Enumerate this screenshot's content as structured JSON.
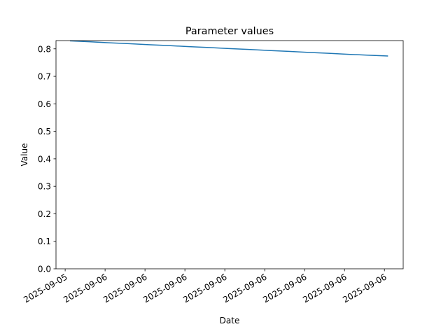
{
  "chart_data": {
    "type": "line",
    "title": "Parameter values",
    "x_label": "Date",
    "y_label": "Value",
    "x": [
      0.12,
      0.6,
      1.1,
      1.6,
      2.1,
      2.6,
      3.1,
      3.6,
      4.1,
      4.6,
      5.1,
      5.6,
      6.1,
      6.6,
      7.1,
      7.6,
      8.09
    ],
    "series": [
      {
        "name": "Value",
        "color": "#1f77b4",
        "values": [
          0.829,
          0.826,
          0.822,
          0.819,
          0.815,
          0.812,
          0.808,
          0.805,
          0.801,
          0.798,
          0.794,
          0.791,
          0.787,
          0.784,
          0.78,
          0.777,
          0.774
        ]
      }
    ],
    "xlim": [
      -0.23,
      8.47
    ],
    "xticks": [
      {
        "value": 0,
        "label": "2025-09-05"
      },
      {
        "value": 1,
        "label": "2025-09-06"
      },
      {
        "value": 2,
        "label": "2025-09-06"
      },
      {
        "value": 3,
        "label": "2025-09-06"
      },
      {
        "value": 4,
        "label": "2025-09-06"
      },
      {
        "value": 5,
        "label": "2025-09-06"
      },
      {
        "value": 6,
        "label": "2025-09-06"
      },
      {
        "value": 7,
        "label": "2025-09-06"
      },
      {
        "value": 8,
        "label": "2025-09-06"
      }
    ],
    "ylim": [
      0,
      0.83
    ],
    "yticks": [
      {
        "value": 0,
        "label": "0.0"
      },
      0.1,
      0.2,
      0.3,
      0.4,
      0.5,
      0.6,
      0.7,
      0.8
    ],
    "grid": false
  }
}
